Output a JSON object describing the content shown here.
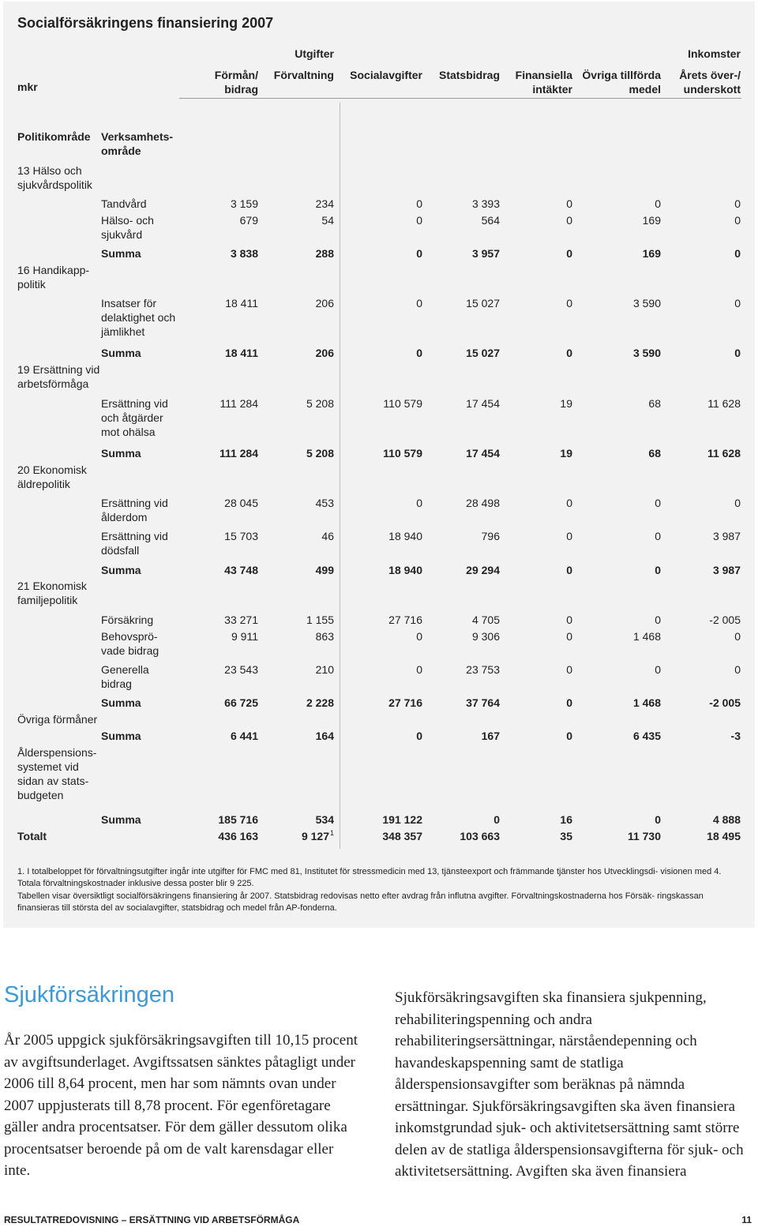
{
  "title": "Socialförsäkringens finansiering 2007",
  "table": {
    "unit": "mkr",
    "groups": [
      "Utgifter",
      "Inkomster"
    ],
    "columns": [
      "Förmån/ bidrag",
      "Förvaltning",
      "Socialavgifter",
      "Statsbidrag",
      "Finansiella intäkter",
      "Övriga tillförda medel",
      "Årets över-/ underskott"
    ],
    "subheaders": [
      "Politikområde",
      "Verksamhets- område"
    ],
    "rows": [
      {
        "area": "13 Hälso och sjukvårdspolitik"
      },
      {
        "activity": "Tandvård",
        "values": [
          "3 159",
          "234",
          "0",
          "3 393",
          "0",
          "0",
          "0"
        ]
      },
      {
        "activity": "Hälso- och sjukvård",
        "values": [
          "679",
          "54",
          "0",
          "564",
          "0",
          "169",
          "0"
        ]
      },
      {
        "activity": "Summa",
        "bold": true,
        "values": [
          "3 838",
          "288",
          "0",
          "3 957",
          "0",
          "169",
          "0"
        ]
      },
      {
        "area": "16 Handikapp- politik"
      },
      {
        "activity": "Insatser för delaktighet och jämlikhet",
        "values": [
          "18 411",
          "206",
          "0",
          "15 027",
          "0",
          "3 590",
          "0"
        ]
      },
      {
        "activity": "Summa",
        "bold": true,
        "values": [
          "18 411",
          "206",
          "0",
          "15 027",
          "0",
          "3 590",
          "0"
        ]
      },
      {
        "area": "19 Ersättning vid arbetsförmåga"
      },
      {
        "activity": "Ersättning vid och åtgärder mot ohälsa",
        "values": [
          "111 284",
          "5 208",
          "110 579",
          "17 454",
          "19",
          "68",
          "11 628"
        ]
      },
      {
        "activity": "Summa",
        "bold": true,
        "values": [
          "111 284",
          "5 208",
          "110 579",
          "17 454",
          "19",
          "68",
          "11 628"
        ]
      },
      {
        "area": "20 Ekonomisk äldrepolitik"
      },
      {
        "activity": "Ersättning vid ålderdom",
        "values": [
          "28 045",
          "453",
          "0",
          "28 498",
          "0",
          "0",
          "0"
        ]
      },
      {
        "activity": "Ersättning vid dödsfall",
        "values": [
          "15 703",
          "46",
          "18 940",
          "796",
          "0",
          "0",
          "3 987"
        ]
      },
      {
        "activity": "Summa",
        "bold": true,
        "values": [
          "43 748",
          "499",
          "18 940",
          "29 294",
          "0",
          "0",
          "3 987"
        ]
      },
      {
        "area": "21 Ekonomisk familjepolitik"
      },
      {
        "activity": "Försäkring",
        "values": [
          "33 271",
          "1 155",
          "27 716",
          "4 705",
          "0",
          "0",
          "-2 005"
        ]
      },
      {
        "activity": "Behovsprö- vade bidrag",
        "values": [
          "9 911",
          "863",
          "0",
          "9 306",
          "0",
          "1 468",
          "0"
        ]
      },
      {
        "activity": "Generella bidrag",
        "values": [
          "23 543",
          "210",
          "0",
          "23 753",
          "0",
          "0",
          "0"
        ]
      },
      {
        "activity": "Summa",
        "bold": true,
        "values": [
          "66 725",
          "2 228",
          "27 716",
          "37 764",
          "0",
          "1 468",
          "-2 005"
        ]
      },
      {
        "area": "Övriga förmåner"
      },
      {
        "activity": "Summa",
        "bold": true,
        "values": [
          "6 441",
          "164",
          "0",
          "167",
          "0",
          "6 435",
          "-3"
        ]
      },
      {
        "area": "Ålderspensions- systemet vid sidan av stats- budgeten"
      },
      {
        "activity": "Summa",
        "bold": true,
        "values": [
          "185 716",
          "534",
          "191 122",
          "0",
          "16",
          "0",
          "4 888"
        ]
      },
      {
        "area": "Totalt",
        "bold": true,
        "values": [
          "436 163",
          "9 127",
          "348 357",
          "103 663",
          "35",
          "11 730",
          "18 495"
        ],
        "footnote_mark": "1"
      }
    ],
    "notes": [
      "1. I totalbeloppet för förvaltningsutgifter ingår inte utgifter för FMC med 81, Institutet för stressmedicin med 13, tjänsteexport och främmande tjänster hos Utvecklingsdi- visionen med 4. Totala förvaltningskostnader inklusive dessa poster blir 9 225.",
      "Tabellen visar översiktligt socialförsäkringens finansiering år 2007. Statsbidrag redovisas netto efter avdrag från influtna avgifter. Förvaltningskostnaderna hos Försäk- ringskassan finansieras till största del av socialavgifter, statsbidrag och medel från AP-fonderna."
    ]
  },
  "article": {
    "heading": "Sjukförsäkringen",
    "paragraphs": [
      "År 2005 uppgick sjukförsäkringsavgiften till 10,15 procent av avgiftsunderlaget. Avgiftssatsen sänktes påtagligt under 2006 till 8,64 procent, men har som nämnts ovan under 2007 uppjusterats till 8,78 procent. För egenföretagare gäller andra procentsatser. För dem gäller dessutom olika procentsatser beroende på om de valt karensdagar eller inte.",
      "Sjukförsäkringsavgiften ska finansiera sjukpenning, rehabiliteringspenning och andra rehabiliteringsersättningar, närståendepenning och havandeskapspenning samt de statliga ålderspensionsavgifter som beräknas på nämnda ersättningar. Sjukförsäkringsavgiften ska även finansiera inkomstgrundad sjuk- och aktivitetsersättning samt större delen av de statliga ålderspensionsavgifterna för sjuk- och aktivitetsersättning. Avgiften ska även finansiera"
    ]
  },
  "footer": {
    "section": "RESULTATREDOVISNING – ERSÄTTNING VID ARBETSFÖRMÅGA",
    "page": "11"
  }
}
